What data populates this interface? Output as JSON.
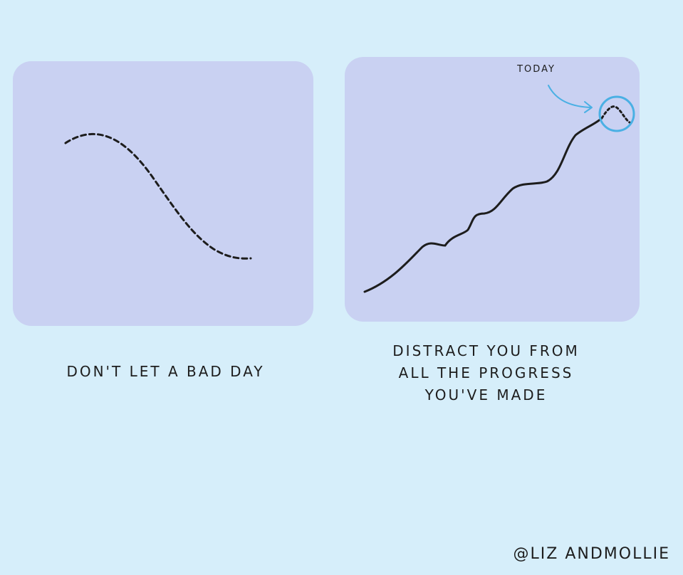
{
  "left_panel": {
    "caption": "DON'T LET A BAD DAY"
  },
  "right_panel": {
    "annotation": "TODAY",
    "caption_lines": [
      "DISTRACT YOU FROM",
      "ALL THE PROGRESS",
      "YOU'VE MADE"
    ]
  },
  "signature": "@LIZ ANDMOLLIE",
  "colors": {
    "background": "#d6eefa",
    "panel": "#c9d1f2",
    "ink": "#1d1d1d",
    "highlight": "#4ab0e4"
  }
}
